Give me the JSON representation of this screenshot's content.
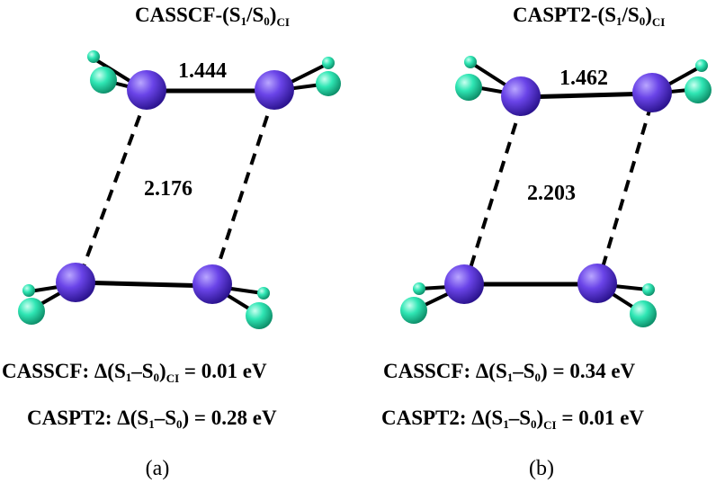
{
  "colors": {
    "carbon": "#6a44e8",
    "hydrogen": "#2fe6b4",
    "bond": "#000000"
  },
  "panel_a": {
    "title_main": "CASSCF-(S",
    "title_sub1": "1",
    "title_sep": "/S",
    "title_sub0": "0",
    "title_close": ")",
    "title_sub_ci": "CI",
    "bond_length": "1.444",
    "distance": "2.176",
    "line1_label": "CASSCF: Δ(S",
    "line1_sub1": "1",
    "line1_dash": "–S",
    "line1_sub0": "0",
    "line1_close": ")",
    "line1_sub_ci": "CI",
    "line1_value": " = 0.01 eV",
    "line2_label": "CASPT2: Δ(S",
    "line2_sub1": "1",
    "line2_dash": "–S",
    "line2_sub0": "0",
    "line2_close": ")",
    "line2_value": " = 0.28 eV",
    "caption": "(a)"
  },
  "panel_b": {
    "title_main": "CASPT2-(S",
    "title_sub1": "1",
    "title_sep": "/S",
    "title_sub0": "0",
    "title_close": ")",
    "title_sub_ci": "CI",
    "bond_length": "1.462",
    "distance": "2.203",
    "line1_label": "CASSCF: Δ(S",
    "line1_sub1": "1",
    "line1_dash": "–S",
    "line1_sub0": "0",
    "line1_close": ")",
    "line1_value": " = 0.34 eV",
    "line2_label": "CASPT2: Δ(S",
    "line2_sub1": "1",
    "line2_dash": "–S",
    "line2_sub0": "0",
    "line2_close": ")",
    "line2_sub_ci": "CI",
    "line2_value": " = 0.01 eV",
    "caption": "(b)"
  }
}
